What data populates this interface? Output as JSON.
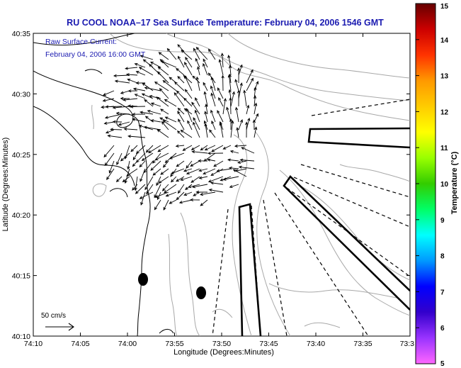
{
  "figure": {
    "title": "RU COOL  NOAA–17  Sea Surface Temperature:  February 04, 2006 1546 GMT",
    "x_axis_label": "Longitude (Degrees:Minutes)",
    "y_axis_label": "Latitude (Degrees:Minutes)",
    "x_ticks": [
      "74:10",
      "74:05",
      "74:00",
      "73:55",
      "73:50",
      "73:45",
      "73:40",
      "73:35",
      "73:3"
    ],
    "y_ticks": [
      "40:35",
      "40:30",
      "40:25",
      "40:20",
      "40:15",
      "40:10"
    ],
    "legend_line1": "Raw Surface Current:",
    "legend_line2": "February 04, 2006 16:00 GMT",
    "scale_label": "50 cm/s"
  },
  "colorbar": {
    "label": "Temperature (°C)",
    "ticks": [
      "15",
      "14",
      "13",
      "12",
      "11",
      "10",
      "9",
      "8",
      "7",
      "6",
      "5"
    ],
    "gradient": [
      "#ff66ff",
      "#9933ff",
      "#3300cc",
      "#0000ff",
      "#0099ff",
      "#00ffff",
      "#00ff66",
      "#33cc00",
      "#99ff00",
      "#ffff00",
      "#ffcc00",
      "#ff9900",
      "#ff3300",
      "#cc0000",
      "#660000"
    ]
  },
  "colors": {
    "title_text": "#1a1ab0",
    "legend_text": "#1a1ab0",
    "contour": "#a8a8a8",
    "coast": "#000000"
  }
}
